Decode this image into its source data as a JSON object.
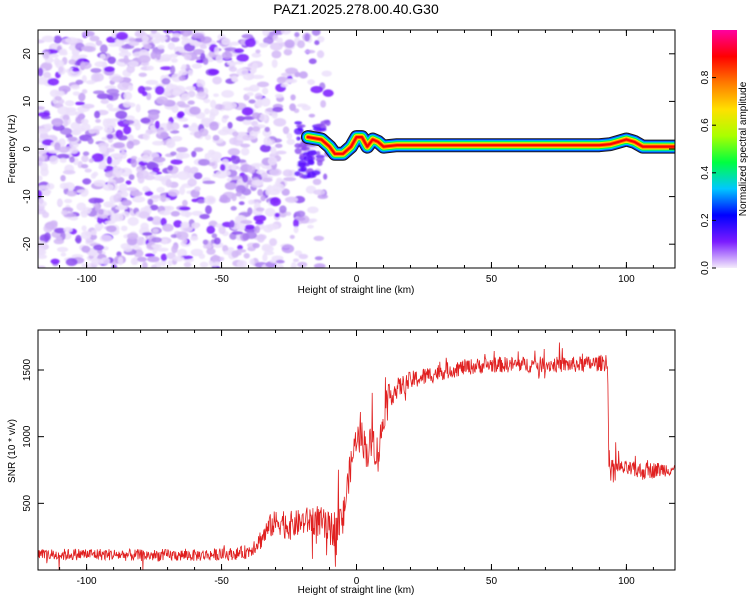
{
  "title": "PAZ1.2025.278.00.40.G30",
  "chart_data": [
    {
      "type": "heatmap",
      "xlabel": "Height of straight line (km)",
      "ylabel": "Frequency (Hz)",
      "xlim": [
        -118,
        118
      ],
      "ylim": [
        -25,
        25
      ],
      "xticks": [
        -100,
        -50,
        0,
        50,
        100
      ],
      "yticks": [
        -20,
        -10,
        0,
        10,
        20
      ],
      "xtick_labels": [
        "-100",
        "-50",
        "0",
        "50",
        "100"
      ],
      "ytick_labels": [
        "-20",
        "-10",
        "0",
        "10",
        "20"
      ],
      "noise_region_x": [
        -118,
        -10
      ],
      "noise_region_y": [
        -25,
        25
      ],
      "signal_ridge": {
        "x": [
          -18,
          -13,
          -10,
          -8,
          -5,
          -2,
          0,
          2,
          4,
          6,
          8,
          10,
          15,
          30,
          60,
          90,
          94,
          97,
          100,
          103,
          106,
          110,
          118
        ],
        "y": [
          2.5,
          2.0,
          0.5,
          -1.0,
          -1.0,
          0.5,
          2.5,
          2.5,
          0.5,
          2.0,
          1.5,
          0.5,
          0.8,
          0.8,
          0.8,
          0.8,
          1.0,
          1.5,
          2.0,
          1.5,
          0.5,
          0.5,
          0.5
        ]
      },
      "colorbar": {
        "label": "Normalized spectral amplitude",
        "ticks": [
          0.0,
          0.2,
          0.4,
          0.6,
          0.8
        ],
        "tick_labels": [
          "0.0",
          "0.2",
          "0.4",
          "0.6",
          "0.8"
        ],
        "range": [
          0,
          1
        ],
        "colors": [
          "#f4ecfb",
          "#7a1bff",
          "#0000ff",
          "#00c8ff",
          "#00ff40",
          "#aaff00",
          "#ffe000",
          "#ff7a00",
          "#ff0000",
          "#ff00a0"
        ]
      }
    },
    {
      "type": "line",
      "xlabel": "Height of straight line (km)",
      "ylabel": "SNR (10 * v/v)",
      "xlim": [
        -118,
        118
      ],
      "ylim": [
        0,
        1800
      ],
      "xticks": [
        -100,
        -50,
        0,
        50,
        100
      ],
      "yticks": [
        500,
        1000,
        1500
      ],
      "xtick_labels": [
        "-100",
        "-50",
        "0",
        "50",
        "100"
      ],
      "ytick_labels": [
        "500",
        "1000",
        "1500"
      ],
      "color": "#e02020",
      "series": [
        {
          "name": "SNR",
          "x": [
            -118,
            -100,
            -80,
            -60,
            -45,
            -40,
            -35,
            -32,
            -28,
            -25,
            -20,
            -15,
            -10,
            -7,
            -5,
            -3,
            -1,
            0,
            2,
            4,
            6,
            8,
            10,
            12,
            15,
            20,
            25,
            30,
            40,
            50,
            60,
            70,
            80,
            90,
            92,
            93,
            93.5,
            95,
            100,
            105,
            110,
            118
          ],
          "y": [
            110,
            120,
            110,
            110,
            120,
            140,
            240,
            330,
            370,
            330,
            360,
            380,
            300,
            330,
            380,
            680,
            900,
            1000,
            1000,
            880,
            980,
            850,
            1150,
            1300,
            1360,
            1420,
            1450,
            1480,
            1520,
            1540,
            1540,
            1540,
            1540,
            1550,
            1560,
            1580,
            760,
            770,
            760,
            740,
            750,
            760
          ],
          "noise_amp": [
            45,
            45,
            45,
            45,
            45,
            55,
            80,
            90,
            110,
            110,
            100,
            120,
            130,
            150,
            150,
            120,
            120,
            100,
            120,
            140,
            140,
            150,
            120,
            90,
            80,
            70,
            70,
            65,
            60,
            60,
            60,
            60,
            60,
            60,
            70,
            70,
            60,
            60,
            55,
            70,
            60,
            50
          ]
        }
      ]
    }
  ]
}
